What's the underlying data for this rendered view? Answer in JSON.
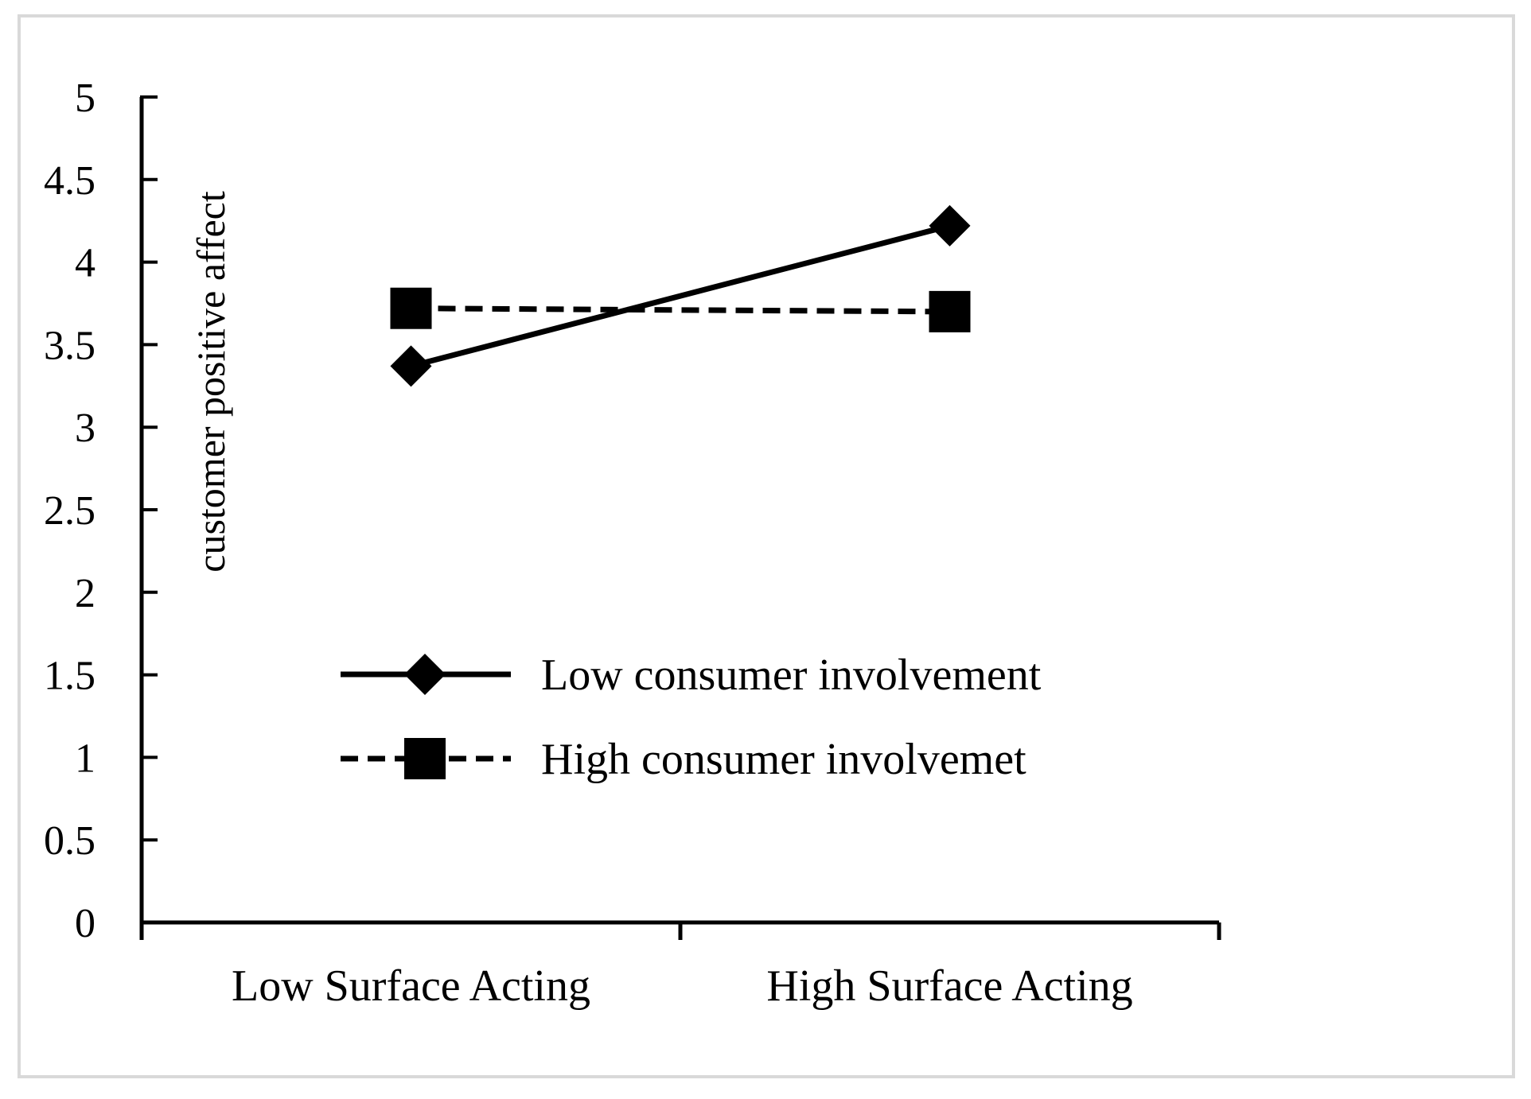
{
  "chart_data": {
    "type": "line",
    "title": "",
    "xlabel": "",
    "ylabel": "customer positive affect",
    "ylim": [
      0,
      5
    ],
    "yticks": [
      "0",
      "0.5",
      "1",
      "1.5",
      "2",
      "2.5",
      "3",
      "3.5",
      "4",
      "4.5",
      "5"
    ],
    "grid": false,
    "legend_position": "center",
    "categories": [
      "Low Surface Acting",
      "High Surface Acting"
    ],
    "series": [
      {
        "name": "Low consumer involvement",
        "values": [
          3.37,
          4.22
        ],
        "line_style": "solid",
        "marker": "diamond"
      },
      {
        "name": "High consumer involvemet",
        "values": [
          3.72,
          3.7
        ],
        "line_style": "dashed",
        "marker": "square"
      }
    ]
  }
}
